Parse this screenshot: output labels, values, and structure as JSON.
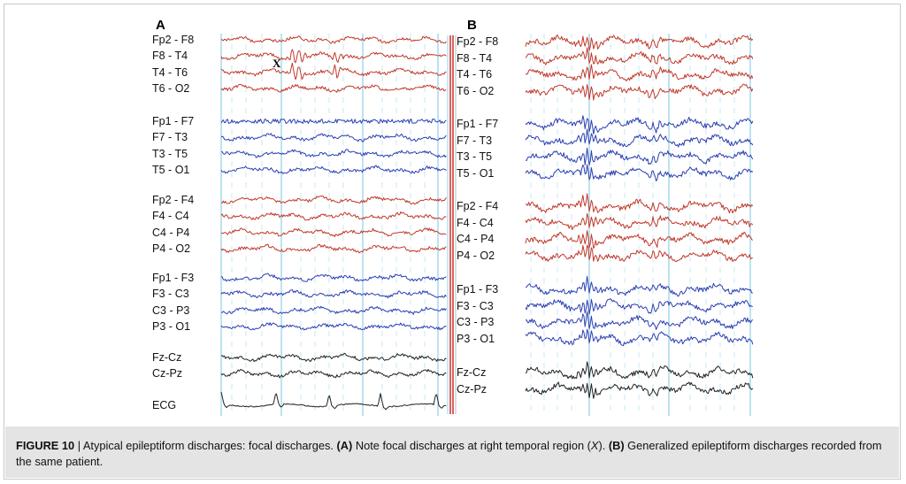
{
  "panels": [
    {
      "letter": "A",
      "groups": [
        {
          "color": "#c0392b",
          "channels": [
            "Fp2 - F8",
            "F8 - T4",
            "T4 - T6",
            "T6 - O2"
          ]
        },
        {
          "color": "#2c3fb0",
          "channels": [
            "Fp1 - F7",
            "F7 - T3",
            "T3 - T5",
            "T5 - O1"
          ]
        },
        {
          "color": "#c0392b",
          "channels": [
            "Fp2 - F4",
            "F4 - C4",
            "C4 - P4",
            "P4 - O2"
          ]
        },
        {
          "color": "#2c3fb0",
          "channels": [
            "Fp1 - F3",
            "F3 - C3",
            "C3 - P3",
            "P3 - O1"
          ]
        },
        {
          "color": "#222222",
          "channels": [
            "Fz-Cz",
            "Cz-Pz"
          ]
        },
        {
          "color": "#222222",
          "channels": [
            "ECG"
          ]
        }
      ],
      "marker": "X"
    },
    {
      "letter": "B",
      "groups": [
        {
          "color": "#c0392b",
          "channels": [
            "Fp2 - F8",
            "F8 - T4",
            "T4 - T6",
            "T6 - O2"
          ]
        },
        {
          "color": "#2c3fb0",
          "channels": [
            "Fp1 - F7",
            "F7 - T3",
            "T3 - T5",
            "T5 - O1"
          ]
        },
        {
          "color": "#c0392b",
          "channels": [
            "Fp2 - F4",
            "F4 - C4",
            "C4 - P4",
            "P4 - O2"
          ]
        },
        {
          "color": "#2c3fb0",
          "channels": [
            "Fp1 - F3",
            "F3 - C3",
            "C3 - P3",
            "P3 - O1"
          ]
        },
        {
          "color": "#222222",
          "channels": [
            "Fz-Cz",
            "Cz-Pz"
          ]
        }
      ]
    }
  ],
  "caption": {
    "figure_label": "FIGURE 10",
    "separator": " | ",
    "text_1": "Atypical epileptiform discharges: focal discharges. ",
    "part_a_label": "(A)",
    "text_2": " Note focal discharges at right temporal region (",
    "x_ref": "X",
    "text_3": "). ",
    "part_b_label": "(B)",
    "text_4": " Generalized epileptiform discharges recorded from the same patient."
  },
  "colors": {
    "red_trace": "#c0392b",
    "blue_trace": "#2c3fb0",
    "black_trace": "#222222",
    "gridline": "#8fd0e8",
    "separator_red": "#d23a3a"
  }
}
